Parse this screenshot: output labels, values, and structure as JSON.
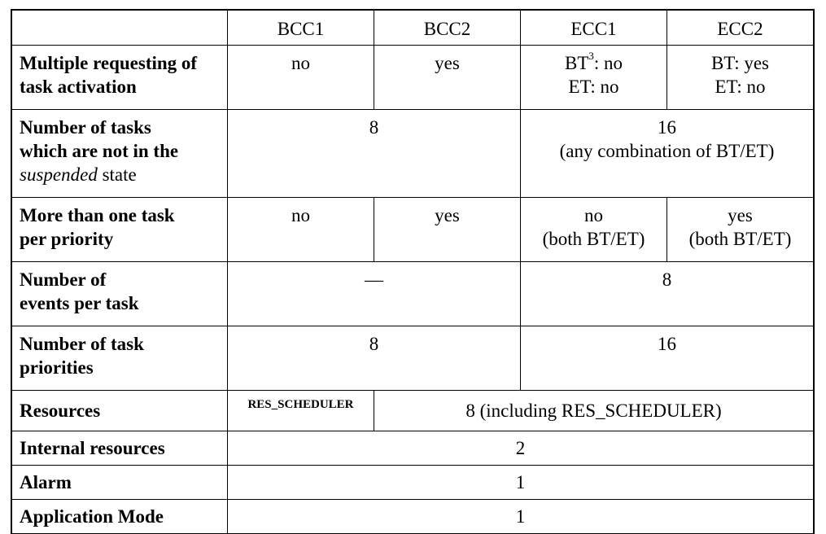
{
  "headers": [
    "",
    "BCC1",
    "BCC2",
    "ECC1",
    "ECC2"
  ],
  "rows": {
    "multiple_activation": {
      "label_lines": [
        "Multiple requesting of",
        "task activation"
      ],
      "bcc1": "no",
      "bcc2": "yes",
      "ecc1_line1_pre": "BT",
      "ecc1_line1_sup": "3",
      "ecc1_line1_post": ": no",
      "ecc1_line2": "ET: no",
      "ecc2_line1": "BT: yes",
      "ecc2_line2": "ET: no"
    },
    "tasks_not_suspended": {
      "label_line1": "Number of tasks",
      "label_line2": "which are not in the",
      "label_line3_italic": "suspended",
      "label_line3_rest": " state",
      "bcc": "8",
      "ecc_line1": "16",
      "ecc_line2": "(any combination of BT/ET)"
    },
    "more_than_one_task": {
      "label_lines": [
        "More than one task",
        "per priority"
      ],
      "bcc1": "no",
      "bcc2": "yes",
      "ecc1_line1": "no",
      "ecc1_line2": "(both BT/ET)",
      "ecc2_line1": "yes",
      "ecc2_line2": "(both BT/ET)"
    },
    "events_per_task": {
      "label_lines": [
        "Number of",
        "events per task"
      ],
      "bcc": "—",
      "ecc": "8"
    },
    "task_priorities": {
      "label_lines": [
        "Number of task",
        "priorities"
      ],
      "bcc": "8",
      "ecc": "16"
    },
    "resources": {
      "label": "Resources",
      "bcc1": "RES_SCHEDULER",
      "rest": "8 (including RES_SCHEDULER)"
    },
    "internal_resources": {
      "label": "Internal resources",
      "value": "2"
    },
    "alarm": {
      "label": "Alarm",
      "value": "1"
    },
    "application_mode": {
      "label": "Application Mode",
      "value": "1"
    }
  }
}
